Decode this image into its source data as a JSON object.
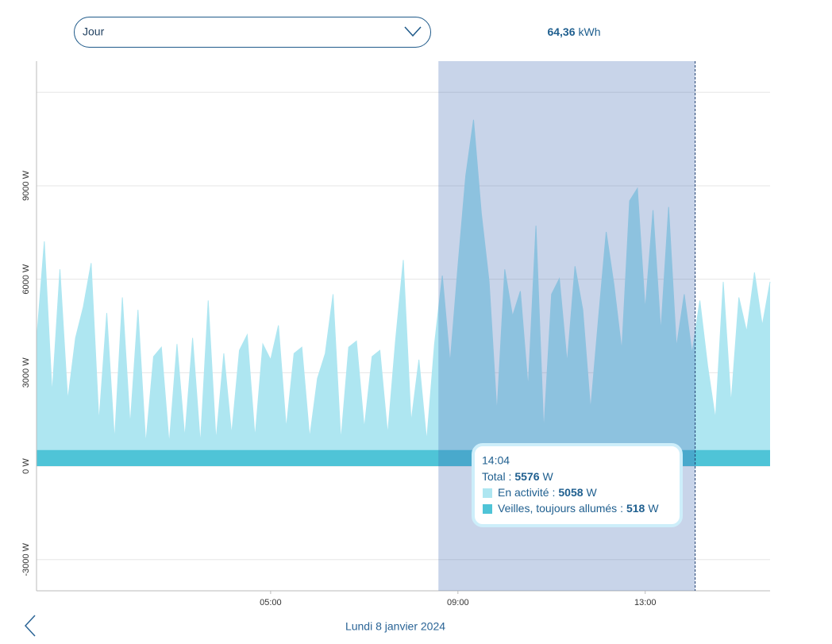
{
  "header": {
    "period": "Jour",
    "energy": "64,36",
    "energy_unit": "kWh"
  },
  "chart_data": {
    "type": "area",
    "stacked": true,
    "x": [
      0,
      10,
      20,
      30,
      40,
      50,
      60,
      70,
      80,
      90,
      100,
      110,
      120,
      130,
      140,
      150,
      160,
      170,
      180,
      190,
      200,
      210,
      220,
      230,
      240,
      250,
      260,
      270,
      280,
      290,
      300,
      310,
      320,
      330,
      340,
      350,
      360,
      370,
      380,
      390,
      400,
      410,
      420,
      430,
      440,
      450,
      460,
      470,
      480,
      490,
      500,
      510,
      520,
      530,
      540,
      550,
      560,
      570,
      580,
      590,
      600,
      610,
      620,
      630,
      640,
      650,
      660,
      670,
      680,
      690,
      700,
      710,
      720,
      730,
      740,
      750,
      760,
      770,
      780,
      790,
      800,
      810,
      820,
      830,
      840,
      850,
      860,
      870,
      880,
      890,
      900,
      910,
      920,
      930,
      940
    ],
    "series": [
      {
        "name": "Veilles, toujours allumés",
        "color": "#4fc4d7",
        "values": [
          518,
          518,
          518,
          518,
          518,
          518,
          518,
          518,
          518,
          518,
          518,
          518,
          518,
          518,
          518,
          518,
          518,
          518,
          518,
          518,
          518,
          518,
          518,
          518,
          518,
          518,
          518,
          518,
          518,
          518,
          518,
          518,
          518,
          518,
          518,
          518,
          518,
          518,
          518,
          518,
          518,
          518,
          518,
          518,
          518,
          518,
          518,
          518,
          518,
          518,
          518,
          518,
          518,
          518,
          518,
          518,
          518,
          518,
          518,
          518,
          518,
          518,
          518,
          518,
          518,
          518,
          518,
          518,
          518,
          518,
          518,
          518,
          518,
          518,
          518,
          518,
          518,
          518,
          518,
          518,
          518,
          518,
          518,
          518,
          518,
          518,
          518,
          518,
          518,
          518,
          518,
          518,
          518,
          518,
          518
        ]
      },
      {
        "name": "En activité",
        "color": "#aee6f1",
        "values": [
          3500,
          6700,
          1800,
          5800,
          1600,
          3600,
          4600,
          6000,
          900,
          4400,
          300,
          4900,
          800,
          4500,
          200,
          3000,
          3300,
          200,
          3400,
          400,
          3600,
          200,
          4800,
          300,
          3100,
          500,
          3200,
          3700,
          400,
          3400,
          2900,
          4000,
          700,
          3100,
          3300,
          400,
          2300,
          3100,
          5000,
          300,
          3300,
          3500,
          700,
          3000,
          3200,
          500,
          3500,
          6100,
          900,
          2900,
          300,
          3400,
          5600,
          2800,
          5900,
          8800,
          10600,
          7600,
          5400,
          1200,
          5800,
          4300,
          5100,
          2000,
          7200,
          600,
          5000,
          5500,
          2800,
          5900,
          4500,
          1300,
          4200,
          7000,
          5300,
          3200,
          8000,
          8400,
          4500,
          7700,
          3800,
          7800,
          3300,
          5000,
          3100,
          4800,
          2700,
          1000,
          5400,
          1500,
          4900,
          3800,
          5700,
          4000,
          5400
        ]
      }
    ],
    "xlim": [
      0,
      940
    ],
    "xticks": [
      {
        "value": 300,
        "label": "05:00"
      },
      {
        "value": 540,
        "label": "09:00"
      },
      {
        "value": 780,
        "label": "13:00"
      }
    ],
    "ylim": [
      -4000,
      13000
    ],
    "yticks": [
      {
        "value": -3000,
        "label": "-3000 W"
      },
      {
        "value": 0,
        "label": "0 W"
      },
      {
        "value": 3000,
        "label": "3000 W"
      },
      {
        "value": 6000,
        "label": "6000 W"
      },
      {
        "value": 9000,
        "label": "9000 W"
      }
    ],
    "ygrid": [
      -3000,
      0,
      3000,
      6000,
      9000,
      12000
    ],
    "selection": [
      515,
      844
    ],
    "selection_color": "#3a64b0",
    "tooltip": {
      "time": "14:04",
      "total_label": "Total :",
      "total": 5576,
      "unit": "W",
      "rows": [
        {
          "label": "En activité :",
          "value": 5058,
          "unit": "W"
        },
        {
          "label": "Veilles, toujours allumés :",
          "value": 518,
          "unit": "W"
        }
      ]
    }
  },
  "footer": {
    "date": "Lundi 8 janvier 2024"
  }
}
